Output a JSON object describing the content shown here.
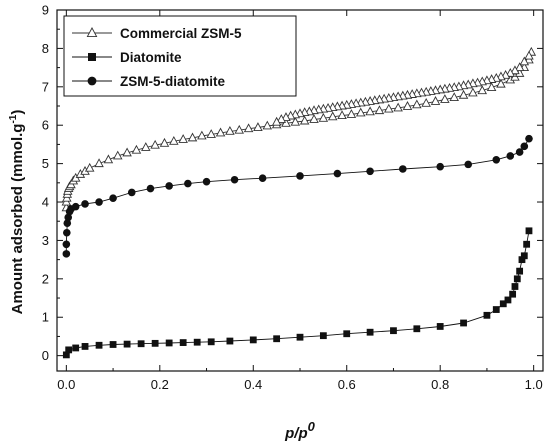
{
  "chart_data": {
    "type": "line",
    "xlabel": {
      "main": "p/p",
      "sup": "0"
    },
    "ylabel": {
      "main": "Amount adsorbed (mmol.g",
      "sup": "-1",
      "end": ")"
    },
    "xlim": [
      -0.02,
      1.02
    ],
    "ylim": [
      -0.4,
      9
    ],
    "xticks": [
      "0.0",
      "0.2",
      "0.4",
      "0.6",
      "0.8",
      "1.0"
    ],
    "yticks": [
      "0",
      "1",
      "2",
      "3",
      "4",
      "5",
      "6",
      "7",
      "8",
      "9"
    ],
    "legend_position": "top-left",
    "series": [
      {
        "name": "Commercial ZSM-5",
        "marker": "triangle",
        "color": "#333333",
        "x": [
          0.0,
          0.0,
          0.001,
          0.002,
          0.003,
          0.005,
          0.007,
          0.01,
          0.015,
          0.02,
          0.03,
          0.04,
          0.05,
          0.07,
          0.09,
          0.11,
          0.13,
          0.15,
          0.17,
          0.19,
          0.21,
          0.23,
          0.25,
          0.27,
          0.29,
          0.31,
          0.33,
          0.35,
          0.37,
          0.39,
          0.41,
          0.43,
          0.45,
          0.47,
          0.49,
          0.51,
          0.53,
          0.55,
          0.57,
          0.59,
          0.61,
          0.63,
          0.65,
          0.67,
          0.69,
          0.71,
          0.73,
          0.75,
          0.77,
          0.79,
          0.81,
          0.83,
          0.85,
          0.87,
          0.89,
          0.91,
          0.93,
          0.95,
          0.96,
          0.97,
          0.98,
          0.99,
          0.995,
          0.99,
          0.98,
          0.97,
          0.96,
          0.95,
          0.94,
          0.93,
          0.92,
          0.91,
          0.9,
          0.89,
          0.88,
          0.87,
          0.86,
          0.85,
          0.84,
          0.83,
          0.82,
          0.81,
          0.8,
          0.79,
          0.78,
          0.77,
          0.76,
          0.75,
          0.74,
          0.73,
          0.72,
          0.71,
          0.7,
          0.69,
          0.68,
          0.67,
          0.66,
          0.65,
          0.64,
          0.63,
          0.62,
          0.61,
          0.6,
          0.59,
          0.58,
          0.57,
          0.56,
          0.55,
          0.54,
          0.53,
          0.52,
          0.51,
          0.5,
          0.49,
          0.48,
          0.47,
          0.46,
          0.45
        ],
        "y": [
          3.85,
          4.0,
          4.1,
          4.2,
          4.28,
          4.35,
          4.4,
          4.45,
          4.55,
          4.62,
          4.72,
          4.8,
          4.88,
          5.0,
          5.1,
          5.2,
          5.28,
          5.35,
          5.42,
          5.48,
          5.53,
          5.58,
          5.63,
          5.67,
          5.72,
          5.76,
          5.8,
          5.84,
          5.87,
          5.91,
          5.94,
          5.98,
          6.01,
          6.05,
          6.08,
          6.11,
          6.15,
          6.18,
          6.22,
          6.25,
          6.28,
          6.32,
          6.35,
          6.38,
          6.42,
          6.45,
          6.49,
          6.53,
          6.57,
          6.62,
          6.67,
          6.72,
          6.78,
          6.84,
          6.9,
          6.98,
          7.07,
          7.18,
          7.25,
          7.35,
          7.5,
          7.7,
          7.9,
          7.8,
          7.65,
          7.5,
          7.42,
          7.35,
          7.3,
          7.26,
          7.22,
          7.19,
          7.16,
          7.13,
          7.1,
          7.08,
          7.05,
          7.03,
          7.0,
          6.98,
          6.96,
          6.94,
          6.92,
          6.9,
          6.88,
          6.86,
          6.84,
          6.82,
          6.8,
          6.78,
          6.76,
          6.74,
          6.72,
          6.7,
          6.68,
          6.66,
          6.64,
          6.62,
          6.6,
          6.58,
          6.56,
          6.54,
          6.52,
          6.5,
          6.48,
          6.46,
          6.44,
          6.42,
          6.4,
          6.38,
          6.35,
          6.33,
          6.3,
          6.27,
          6.24,
          6.2,
          6.15,
          6.08
        ]
      },
      {
        "name": "Diatomite",
        "marker": "square",
        "color": "#111111",
        "x": [
          0.0,
          0.005,
          0.02,
          0.04,
          0.07,
          0.1,
          0.13,
          0.16,
          0.19,
          0.22,
          0.25,
          0.28,
          0.31,
          0.35,
          0.4,
          0.45,
          0.5,
          0.55,
          0.6,
          0.65,
          0.7,
          0.75,
          0.8,
          0.85,
          0.9,
          0.92,
          0.935,
          0.945,
          0.955,
          0.96,
          0.965,
          0.97,
          0.975,
          0.98,
          0.985,
          0.99
        ],
        "y": [
          0.02,
          0.15,
          0.2,
          0.24,
          0.27,
          0.29,
          0.3,
          0.31,
          0.32,
          0.33,
          0.34,
          0.35,
          0.36,
          0.38,
          0.41,
          0.44,
          0.48,
          0.52,
          0.57,
          0.61,
          0.65,
          0.7,
          0.76,
          0.85,
          1.05,
          1.2,
          1.35,
          1.45,
          1.6,
          1.8,
          2.0,
          2.2,
          2.5,
          2.6,
          2.9,
          3.25
        ]
      },
      {
        "name": "ZSM-5-diatomite",
        "marker": "circle",
        "color": "#111111",
        "x": [
          0.0,
          0.0,
          0.001,
          0.002,
          0.004,
          0.007,
          0.01,
          0.02,
          0.04,
          0.07,
          0.1,
          0.14,
          0.18,
          0.22,
          0.26,
          0.3,
          0.36,
          0.42,
          0.5,
          0.58,
          0.65,
          0.72,
          0.8,
          0.86,
          0.92,
          0.95,
          0.97,
          0.98,
          0.99
        ],
        "y": [
          2.65,
          2.9,
          3.2,
          3.45,
          3.6,
          3.75,
          3.82,
          3.88,
          3.95,
          4.0,
          4.1,
          4.25,
          4.35,
          4.42,
          4.48,
          4.53,
          4.58,
          4.62,
          4.68,
          4.74,
          4.8,
          4.86,
          4.92,
          4.98,
          5.1,
          5.2,
          5.3,
          5.45,
          5.65
        ]
      }
    ]
  }
}
